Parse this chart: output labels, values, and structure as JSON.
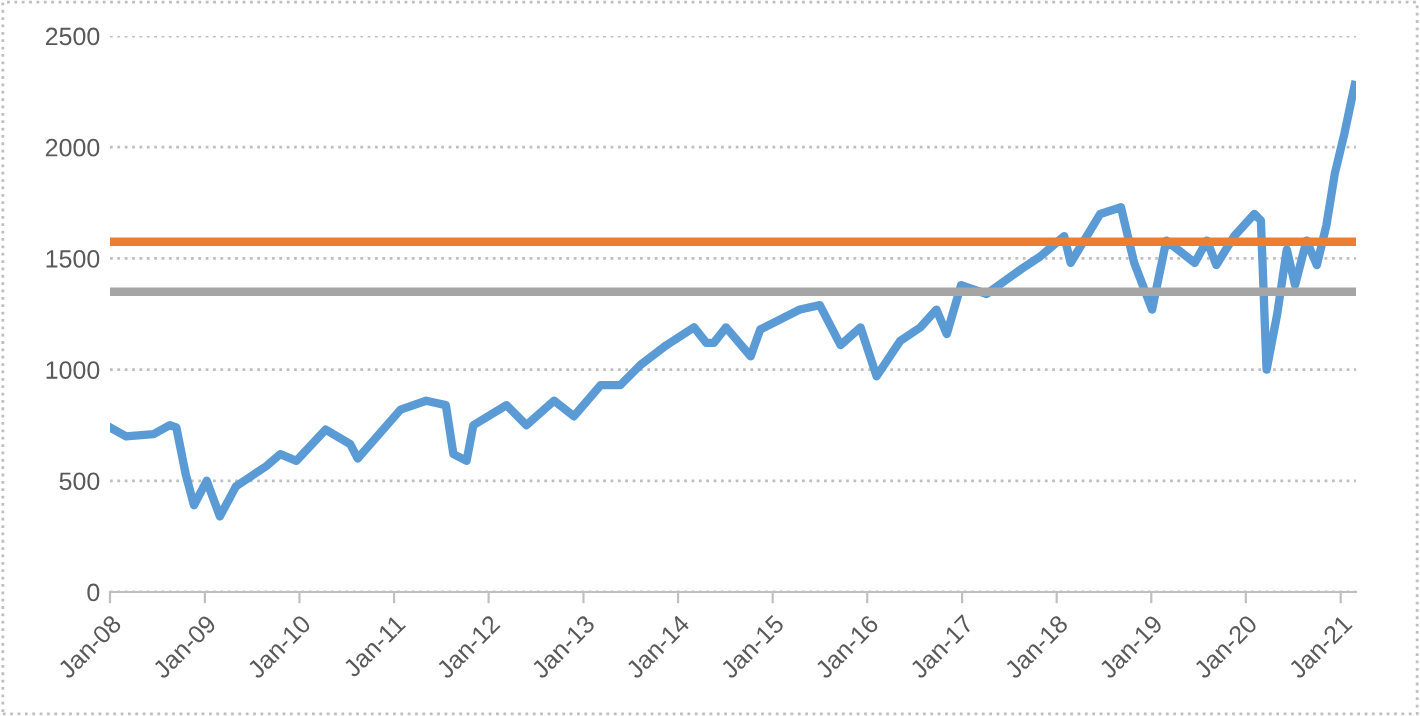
{
  "chart_data": {
    "type": "line",
    "x": [
      "2008-01-01",
      "2008-03-03",
      "2008-06-17",
      "2008-08-19",
      "2008-09-13",
      "2008-10-19",
      "2008-11-20",
      "2009-01-08",
      "2009-02-28",
      "2009-05-01",
      "2009-08-25",
      "2009-10-19",
      "2009-12-20",
      "2010-04-12",
      "2010-07-16",
      "2010-08-14",
      "2011-01-26",
      "2011-05-05",
      "2011-07-20",
      "2011-08-18",
      "2011-10-08",
      "2011-11-03",
      "2012-03-10",
      "2012-05-26",
      "2012-09-10",
      "2012-11-25",
      "2013-03-08",
      "2013-05-23",
      "2013-08-08",
      "2013-11-17",
      "2014-03-04",
      "2014-04-20",
      "2014-05-19",
      "2014-07-05",
      "2014-10-08",
      "2014-11-14",
      "2015-04-16",
      "2015-07-02",
      "2015-09-20",
      "2015-12-06",
      "2016-02-06",
      "2016-05-08",
      "2016-07-24",
      "2016-09-24",
      "2016-11-03",
      "2016-12-28",
      "2017-04-06",
      "2017-08-15",
      "2017-10-31",
      "2018-01-30",
      "2018-02-24",
      "2018-06-18",
      "2018-09-06",
      "2018-10-27",
      "2019-01-04",
      "2019-02-28",
      "2019-06-18",
      "2019-08-04",
      "2019-09-09",
      "2019-11-17",
      "2020-02-03",
      "2020-02-28",
      "2020-03-21",
      "2020-05-01",
      "2020-06-07",
      "2020-07-09",
      "2020-08-22",
      "2020-10-01",
      "2020-11-07",
      "2020-12-09",
      "2021-01-15",
      "2021-02-24"
    ],
    "series": [
      {
        "color": "#5b9bd5",
        "values": [
          740,
          700,
          710,
          750,
          740,
          530,
          390,
          500,
          340,
          475,
          565,
          620,
          590,
          730,
          665,
          600,
          820,
          860,
          840,
          620,
          590,
          750,
          840,
          750,
          860,
          790,
          930,
          930,
          1020,
          1110,
          1190,
          1120,
          1120,
          1190,
          1060,
          1180,
          1270,
          1290,
          1110,
          1190,
          970,
          1130,
          1190,
          1270,
          1160,
          1380,
          1340,
          1450,
          1510,
          1600,
          1480,
          1700,
          1730,
          1480,
          1270,
          1580,
          1480,
          1580,
          1470,
          1600,
          1700,
          1670,
          1000,
          1250,
          1540,
          1380,
          1580,
          1470,
          1650,
          1880,
          2060,
          2280
        ]
      }
    ],
    "ylim": [
      0,
      2500
    ],
    "yticks": [
      0,
      500,
      1000,
      1500,
      2000,
      2500
    ],
    "xlim": [
      "2008-01-01",
      "2021-03-01"
    ],
    "xticks": [
      {
        "value": "2008-01-01",
        "label": "Jan-08"
      },
      {
        "value": "2009-01-01",
        "label": "Jan-09"
      },
      {
        "value": "2010-01-01",
        "label": "Jan-10"
      },
      {
        "value": "2011-01-01",
        "label": "Jan-11"
      },
      {
        "value": "2012-01-01",
        "label": "Jan-12"
      },
      {
        "value": "2013-01-01",
        "label": "Jan-13"
      },
      {
        "value": "2014-01-01",
        "label": "Jan-14"
      },
      {
        "value": "2015-01-01",
        "label": "Jan-15"
      },
      {
        "value": "2016-01-01",
        "label": "Jan-16"
      },
      {
        "value": "2017-01-01",
        "label": "Jan-17"
      },
      {
        "value": "2018-01-01",
        "label": "Jan-18"
      },
      {
        "value": "2019-01-01",
        "label": "Jan-19"
      },
      {
        "value": "2020-01-01",
        "label": "Jan-20"
      },
      {
        "value": "2021-01-01",
        "label": "Jan-21"
      }
    ],
    "ref_lines": [
      {
        "axis": "y",
        "value": 1575,
        "color": "#ed7d31",
        "line_style": "solid"
      },
      {
        "axis": "y",
        "value": 1350,
        "color": "#a5a5a5",
        "line_style": "solid"
      }
    ],
    "grid": "y",
    "legend": false,
    "line_style": "solid",
    "marker": "none"
  }
}
